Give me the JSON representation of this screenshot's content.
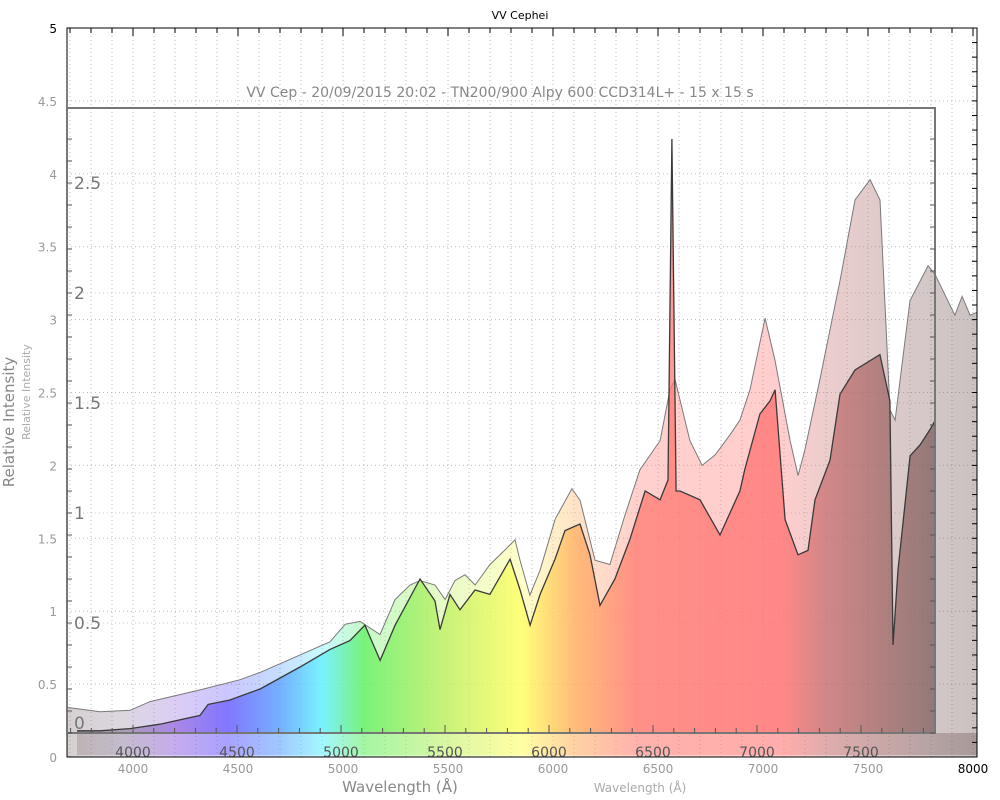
{
  "chart_data": [
    {
      "type": "area",
      "title": "VV Cephei",
      "xlabel": "Wavelength (Å)",
      "ylabel": "Relative Intensity",
      "xlim": [
        3690,
        8000
      ],
      "ylim": [
        0,
        5
      ],
      "xticks": [
        4000,
        4500,
        5000,
        5500,
        6000,
        6500,
        7000,
        7500,
        8000
      ],
      "yticks": [
        0,
        0.5,
        1,
        1.5,
        2,
        2.5,
        3,
        3.5,
        4,
        4.5,
        5
      ],
      "grid": true,
      "colors": {
        "line": "#7a7a7a",
        "axis": "#000000",
        "tick_label": "#999999"
      },
      "fill": "spectral-rainbow-light",
      "x": [
        3686,
        3843,
        3986,
        4081,
        4319,
        4510,
        4605,
        4748,
        4843,
        4938,
        5010,
        5081,
        5176,
        5248,
        5319,
        5367,
        5438,
        5486,
        5533,
        5581,
        5629,
        5700,
        5771,
        5819,
        5843,
        5890,
        5938,
        6010,
        6090,
        6129,
        6200,
        6271,
        6343,
        6414,
        6510,
        6557,
        6581,
        6652,
        6710,
        6771,
        6843,
        6890,
        6938,
        7010,
        7057,
        7129,
        7167,
        7200,
        7271,
        7367,
        7438,
        7510,
        7557,
        7605,
        7629,
        7700,
        7786,
        7819,
        7914,
        7948,
        7986,
        8019
      ],
      "y": [
        0.34,
        0.31,
        0.32,
        0.38,
        0.46,
        0.53,
        0.58,
        0.67,
        0.73,
        0.79,
        0.91,
        0.93,
        0.84,
        1.08,
        1.18,
        1.21,
        1.18,
        1.08,
        1.21,
        1.25,
        1.18,
        1.32,
        1.42,
        1.49,
        1.35,
        1.11,
        1.28,
        1.63,
        1.84,
        1.76,
        1.35,
        1.32,
        1.66,
        1.97,
        2.17,
        2.52,
        2.59,
        2.17,
        2.0,
        2.07,
        2.21,
        2.31,
        2.52,
        3.01,
        2.72,
        2.17,
        1.93,
        2.11,
        2.59,
        3.27,
        3.82,
        3.96,
        3.82,
        2.38,
        2.31,
        3.13,
        3.37,
        3.31,
        3.03,
        3.16,
        3.03,
        3.05
      ]
    },
    {
      "type": "area",
      "title": "VV Cep - 20/09/2015 20:02 - TN200/900 Alpy 600 CCD314L+ - 15 x 15 s",
      "xlabel": "Wavelength (Å)",
      "ylabel": "Relative Intensity",
      "xlim": [
        3680,
        7800
      ],
      "ylim": [
        0,
        2.84
      ],
      "xticks": [
        4000,
        4500,
        5000,
        5500,
        6000,
        6500,
        7000,
        7500
      ],
      "yticks": [
        0,
        0.5,
        1,
        1.5,
        2,
        2.5
      ],
      "grid": true,
      "colors": {
        "line": "#3a3a3a",
        "axis": "#666666",
        "tick_label": "#555555"
      },
      "fill": "spectral-rainbow",
      "x": [
        3731,
        3841,
        3986,
        4130,
        4322,
        4361,
        4466,
        4611,
        4803,
        4947,
        5043,
        5115,
        5188,
        5260,
        5380,
        5452,
        5476,
        5524,
        5572,
        5644,
        5716,
        5813,
        5861,
        5909,
        5957,
        6029,
        6077,
        6149,
        6197,
        6245,
        6317,
        6389,
        6462,
        6534,
        6572,
        6591,
        6611,
        6630,
        6726,
        6822,
        6918,
        6942,
        7014,
        7063,
        7087,
        7135,
        7197,
        7245,
        7279,
        7351,
        7399,
        7471,
        7591,
        7639,
        7654,
        7678,
        7736,
        7784,
        7832,
        7856
      ],
      "y": [
        0.01,
        0.01,
        0.02,
        0.04,
        0.08,
        0.13,
        0.15,
        0.2,
        0.3,
        0.38,
        0.42,
        0.49,
        0.33,
        0.49,
        0.7,
        0.6,
        0.47,
        0.63,
        0.56,
        0.65,
        0.63,
        0.79,
        0.65,
        0.49,
        0.63,
        0.79,
        0.92,
        0.95,
        0.81,
        0.58,
        0.7,
        0.88,
        1.1,
        1.06,
        1.15,
        2.7,
        1.1,
        1.1,
        1.06,
        0.9,
        1.1,
        1.2,
        1.45,
        1.51,
        1.56,
        0.97,
        0.81,
        0.83,
        1.06,
        1.24,
        1.54,
        1.65,
        1.72,
        1.51,
        0.4,
        0.74,
        1.26,
        1.31,
        1.38,
        1.42
      ]
    }
  ],
  "labels": {
    "outer_title": "VV Cephei",
    "inner_title": "VV Cep - 20/09/2015 20:02 - TN200/900 Alpy 600 CCD314L+ - 15 x 15 s",
    "ylabel": "Relative Intensity",
    "xlabel": "Wavelength (Å)"
  }
}
